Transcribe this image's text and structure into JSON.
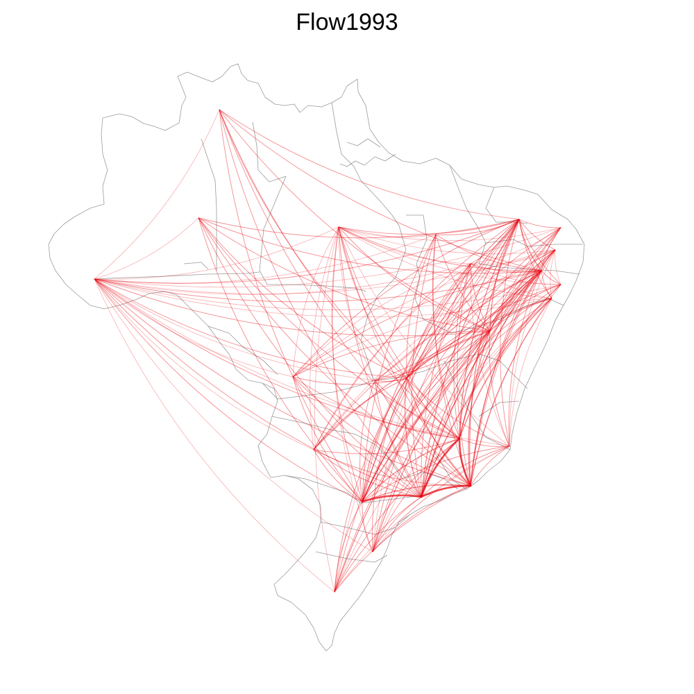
{
  "title": "Flow1993",
  "colors": {
    "flow": "#e8000b",
    "border": "#9a9a9a",
    "background": "#ffffff"
  },
  "map": {
    "region": "Brazil",
    "type": "origin-destination flow map",
    "legend": "none"
  }
}
